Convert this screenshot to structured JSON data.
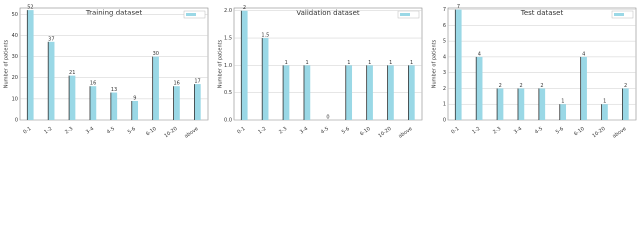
{
  "chart_data": [
    {
      "type": "bar",
      "title": "Training dataset",
      "y_label": "Number of patients",
      "categories": [
        "0-1",
        "1-2",
        "2-3",
        "3-4",
        "4-5",
        "5-6",
        "6-10",
        "10-20",
        "above"
      ],
      "values": [
        52,
        37,
        21,
        16,
        13,
        9,
        30,
        16,
        17
      ],
      "color": "#9ad8e6",
      "ylim": [
        0,
        53
      ],
      "yticks": [
        0,
        10,
        20,
        30,
        40,
        50
      ],
      "grid": true
    },
    {
      "type": "bar",
      "title": "Validation dataset",
      "y_label": "Number of patients",
      "categories": [
        "0-1",
        "1-2",
        "2-3",
        "3-4",
        "4-5",
        "5-6",
        "6-10",
        "10-20",
        "above"
      ],
      "values": [
        2,
        1.5,
        1,
        1,
        0,
        1,
        1,
        1,
        1
      ],
      "color": "#9ad8e6",
      "ylim": [
        0,
        2.05
      ],
      "yticks": [
        {
          "value": 0,
          "label": "0.0"
        },
        0.5,
        {
          "value": 1,
          "label": "1.0"
        },
        1.5,
        {
          "value": 2,
          "label": "2.0"
        }
      ],
      "grid": true
    },
    {
      "type": "bar",
      "title": "Test dataset",
      "y_label": "Number of patients",
      "categories": [
        "0-1",
        "1-2",
        "2-3",
        "3-4",
        "4-5",
        "5-6",
        "6-10",
        "10-20",
        "above"
      ],
      "values": [
        7,
        4,
        2,
        2,
        2,
        1,
        4,
        1,
        2
      ],
      "color": "#9ad8e6",
      "ylim": [
        0,
        7.1
      ],
      "yticks": [
        0,
        1,
        2,
        3,
        4,
        5,
        6,
        7
      ],
      "grid": true
    }
  ]
}
